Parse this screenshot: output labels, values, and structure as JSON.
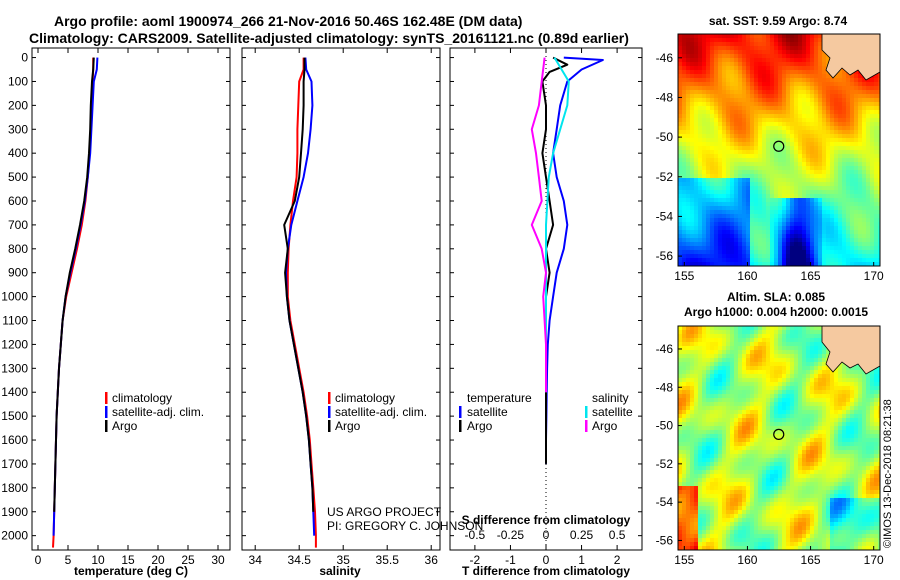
{
  "figure": {
    "title_line1": "Argo profile: aoml 1900974_266 21-Nov-2016 50.46S 162.48E (DM data)",
    "title_line2": "Climatology: CARS2009. Satellite-adjusted climatology: synTS_20161121.nc (0.89d earlier)",
    "credit_line1": "US ARGO PROJECT",
    "credit_line2": "PI: GREGORY C. JOHNSON",
    "timestamp": "©IMOS 13-Dec-2018 08:21:38"
  },
  "colors": {
    "climatology": "#ff0000",
    "satellite": "#0000ff",
    "argo": "#000000",
    "s_satellite": "#00e5ee",
    "s_argo": "#ff00ff"
  },
  "depth_ticks": [
    "0",
    "100",
    "200",
    "300",
    "400",
    "500",
    "600",
    "700",
    "800",
    "900",
    "1000",
    "1100",
    "1200",
    "1300",
    "1400",
    "1500",
    "1600",
    "1700",
    "1800",
    "1900",
    "2000"
  ],
  "chart_data": [
    {
      "type": "line",
      "name": "temperature",
      "xlabel": "temperature (deg C)",
      "ylabel": "",
      "xlim": [
        -1,
        32
      ],
      "ylim": [
        2060,
        -40
      ],
      "xticks": [
        "0",
        "5",
        "10",
        "15",
        "20",
        "25",
        "30"
      ],
      "legend": [
        "climatology",
        "satellite-adj. clim.",
        "Argo"
      ],
      "series": [
        {
          "name": "climatology",
          "color": "#ff0000",
          "x": [
            9.2,
            9.2,
            9.1,
            8.9,
            8.8,
            8.6,
            8.3,
            7.9,
            7.3,
            6.5,
            5.6,
            4.7,
            4.1,
            3.8,
            3.5,
            3.3,
            3.1,
            3.0,
            2.9,
            2.8,
            2.7,
            2.6,
            2.5
          ],
          "y": [
            0,
            50,
            100,
            200,
            300,
            400,
            500,
            600,
            700,
            800,
            900,
            1000,
            1100,
            1200,
            1300,
            1400,
            1500,
            1600,
            1700,
            1800,
            1900,
            2000,
            2050
          ]
        },
        {
          "name": "satellite-adj. clim.",
          "color": "#0000ff",
          "x": [
            9.9,
            9.8,
            9.3,
            9.1,
            8.9,
            8.7,
            8.3,
            7.8,
            7.1,
            6.3,
            5.4,
            4.6,
            4.1,
            3.8,
            3.5,
            3.3,
            3.1,
            3.0,
            2.9,
            2.8,
            2.7,
            2.6
          ],
          "y": [
            0,
            50,
            100,
            200,
            300,
            400,
            500,
            600,
            700,
            800,
            900,
            1000,
            1100,
            1200,
            1300,
            1400,
            1500,
            1600,
            1700,
            1800,
            1900,
            2000
          ]
        },
        {
          "name": "Argo",
          "color": "#000000",
          "x": [
            9.3,
            9.2,
            9.0,
            8.8,
            8.7,
            8.5,
            8.2,
            7.7,
            7.0,
            6.2,
            5.3,
            4.6,
            4.1,
            3.8,
            3.5,
            3.3,
            3.1,
            3.0,
            2.9,
            2.8,
            2.7
          ],
          "y": [
            0,
            50,
            100,
            200,
            300,
            400,
            500,
            600,
            700,
            800,
            900,
            1000,
            1100,
            1200,
            1300,
            1400,
            1500,
            1600,
            1700,
            1800,
            1900
          ]
        }
      ]
    },
    {
      "type": "line",
      "name": "salinity",
      "xlabel": "salinity",
      "ylabel": "",
      "xlim": [
        33.85,
        36.1
      ],
      "ylim": [
        2060,
        -40
      ],
      "xticks": [
        "34",
        "34.5",
        "35",
        "35.5",
        "36"
      ],
      "legend": [
        "climatology",
        "satellite-adj. clim.",
        "Argo"
      ],
      "series": [
        {
          "name": "climatology",
          "color": "#ff0000",
          "x": [
            34.55,
            34.55,
            34.5,
            34.49,
            34.48,
            34.48,
            34.47,
            34.43,
            34.4,
            34.38,
            34.37,
            34.37,
            34.4,
            34.45,
            34.5,
            34.55,
            34.59,
            34.62,
            34.64,
            34.66,
            34.68,
            34.69,
            34.69
          ],
          "y": [
            0,
            50,
            100,
            200,
            300,
            400,
            500,
            600,
            700,
            800,
            900,
            1000,
            1100,
            1200,
            1300,
            1400,
            1500,
            1600,
            1700,
            1800,
            1900,
            2000,
            2050
          ]
        },
        {
          "name": "satellite-adj. clim.",
          "color": "#0000ff",
          "x": [
            34.57,
            34.58,
            34.64,
            34.65,
            34.63,
            34.6,
            34.55,
            34.48,
            34.41,
            34.37,
            34.35,
            34.36,
            34.39,
            34.44,
            34.49,
            34.54,
            34.58,
            34.61,
            34.63,
            34.65,
            34.66,
            34.67
          ],
          "y": [
            0,
            50,
            100,
            200,
            300,
            400,
            500,
            600,
            700,
            800,
            900,
            1000,
            1100,
            1200,
            1300,
            1400,
            1500,
            1600,
            1700,
            1800,
            1900,
            2000
          ]
        },
        {
          "name": "Argo",
          "color": "#000000",
          "x": [
            34.56,
            34.56,
            34.55,
            34.55,
            34.54,
            34.52,
            34.5,
            34.45,
            34.33,
            34.37,
            34.34,
            34.36,
            34.39,
            34.44,
            34.49,
            34.54,
            34.58,
            34.61,
            34.63,
            34.65,
            34.66
          ],
          "y": [
            0,
            50,
            100,
            200,
            300,
            400,
            500,
            600,
            700,
            800,
            900,
            1000,
            1100,
            1200,
            1300,
            1400,
            1500,
            1600,
            1700,
            1800,
            1900
          ]
        }
      ]
    },
    {
      "type": "line",
      "name": "difference from climatology",
      "xlabel": "T difference from climatology",
      "x2label": "S difference from climatology",
      "ylabel": "",
      "xlim": [
        -2.7,
        2.7
      ],
      "ylim": [
        2060,
        -40
      ],
      "xticks": [
        "-2",
        "-1",
        "0",
        "1",
        "2"
      ],
      "x2lim": [
        -0.675,
        0.675
      ],
      "x2ticks": [
        "-0.5",
        "-0.25",
        "0",
        "0.25",
        "0.5"
      ],
      "legend_left_title": "temperature",
      "legend_right_title": "salinity",
      "legend_left": [
        "satellite",
        "Argo"
      ],
      "legend_right": [
        "satellite",
        "Argo"
      ],
      "series": [
        {
          "name": "satellite",
          "color": "#0000ff",
          "x": [
            0.5,
            1.6,
            1.0,
            0.6,
            0.4,
            0.3,
            0.2,
            0.3,
            0.5,
            0.6,
            0.5,
            0.3,
            0.2,
            0.1,
            0.05,
            0.03,
            0.02,
            0.01,
            0.0,
            0.0
          ],
          "y": [
            0,
            10,
            50,
            100,
            200,
            300,
            400,
            500,
            600,
            700,
            800,
            900,
            1000,
            1100,
            1200,
            1300,
            1400,
            1500,
            1600,
            1700
          ]
        },
        {
          "name": "Argo",
          "color": "#000000",
          "x": [
            0.2,
            0.6,
            0.1,
            -0.1,
            0.0,
            0.0,
            -0.1,
            0.0,
            0.1,
            0.2,
            0.0,
            0.1,
            0.0,
            0.0,
            0.0,
            0.0,
            0.0,
            0.0,
            0.0,
            0.0
          ],
          "y": [
            0,
            30,
            60,
            100,
            200,
            300,
            400,
            500,
            600,
            700,
            800,
            900,
            1000,
            1100,
            1200,
            1300,
            1400,
            1500,
            1600,
            1700
          ]
        },
        {
          "name": "satellite",
          "color": "#00e5ee",
          "x2": [
            0.06,
            0.16,
            0.15,
            0.1,
            0.05,
            0.02,
            0.01,
            0.0,
            0.0,
            0.0,
            0.0,
            0.0,
            0.0,
            0.0,
            0.0
          ],
          "y": [
            0,
            100,
            200,
            300,
            400,
            500,
            600,
            700,
            800,
            900,
            1000,
            1100,
            1200,
            1300,
            1400
          ]
        },
        {
          "name": "Argo",
          "color": "#ff00ff",
          "x2": [
            -0.01,
            -0.03,
            -0.05,
            -0.1,
            -0.07,
            -0.05,
            -0.03,
            -0.1,
            -0.03,
            0.0,
            -0.02,
            -0.01,
            0.0,
            0.0,
            0.0
          ],
          "y": [
            0,
            100,
            200,
            300,
            400,
            500,
            600,
            700,
            800,
            900,
            1000,
            1100,
            1200,
            1300,
            1400
          ]
        }
      ]
    },
    {
      "type": "heatmap",
      "name": "satellite SST",
      "title": "sat. SST: 9.59 Argo: 8.74",
      "xticks": [
        "155",
        "160",
        "165",
        "170"
      ],
      "yticks": [
        "-46",
        "-48",
        "-50",
        "-52",
        "-54",
        "-56"
      ],
      "xlim": [
        154.5,
        170.5
      ],
      "ylim": [
        -56.5,
        -44.8
      ],
      "marker": {
        "lon": 162.48,
        "lat": -50.46
      }
    },
    {
      "type": "heatmap",
      "name": "altimetry SLA",
      "title": "Altim. SLA: 0.085",
      "subtitle": "Argo h1000: 0.004 h2000: 0.0015",
      "xticks": [
        "155",
        "160",
        "165",
        "170"
      ],
      "yticks": [
        "-46",
        "-48",
        "-50",
        "-52",
        "-54",
        "-56"
      ],
      "xlim": [
        154.5,
        170.5
      ],
      "ylim": [
        -56.5,
        -44.8
      ],
      "marker": {
        "lon": 162.48,
        "lat": -50.46
      }
    }
  ]
}
